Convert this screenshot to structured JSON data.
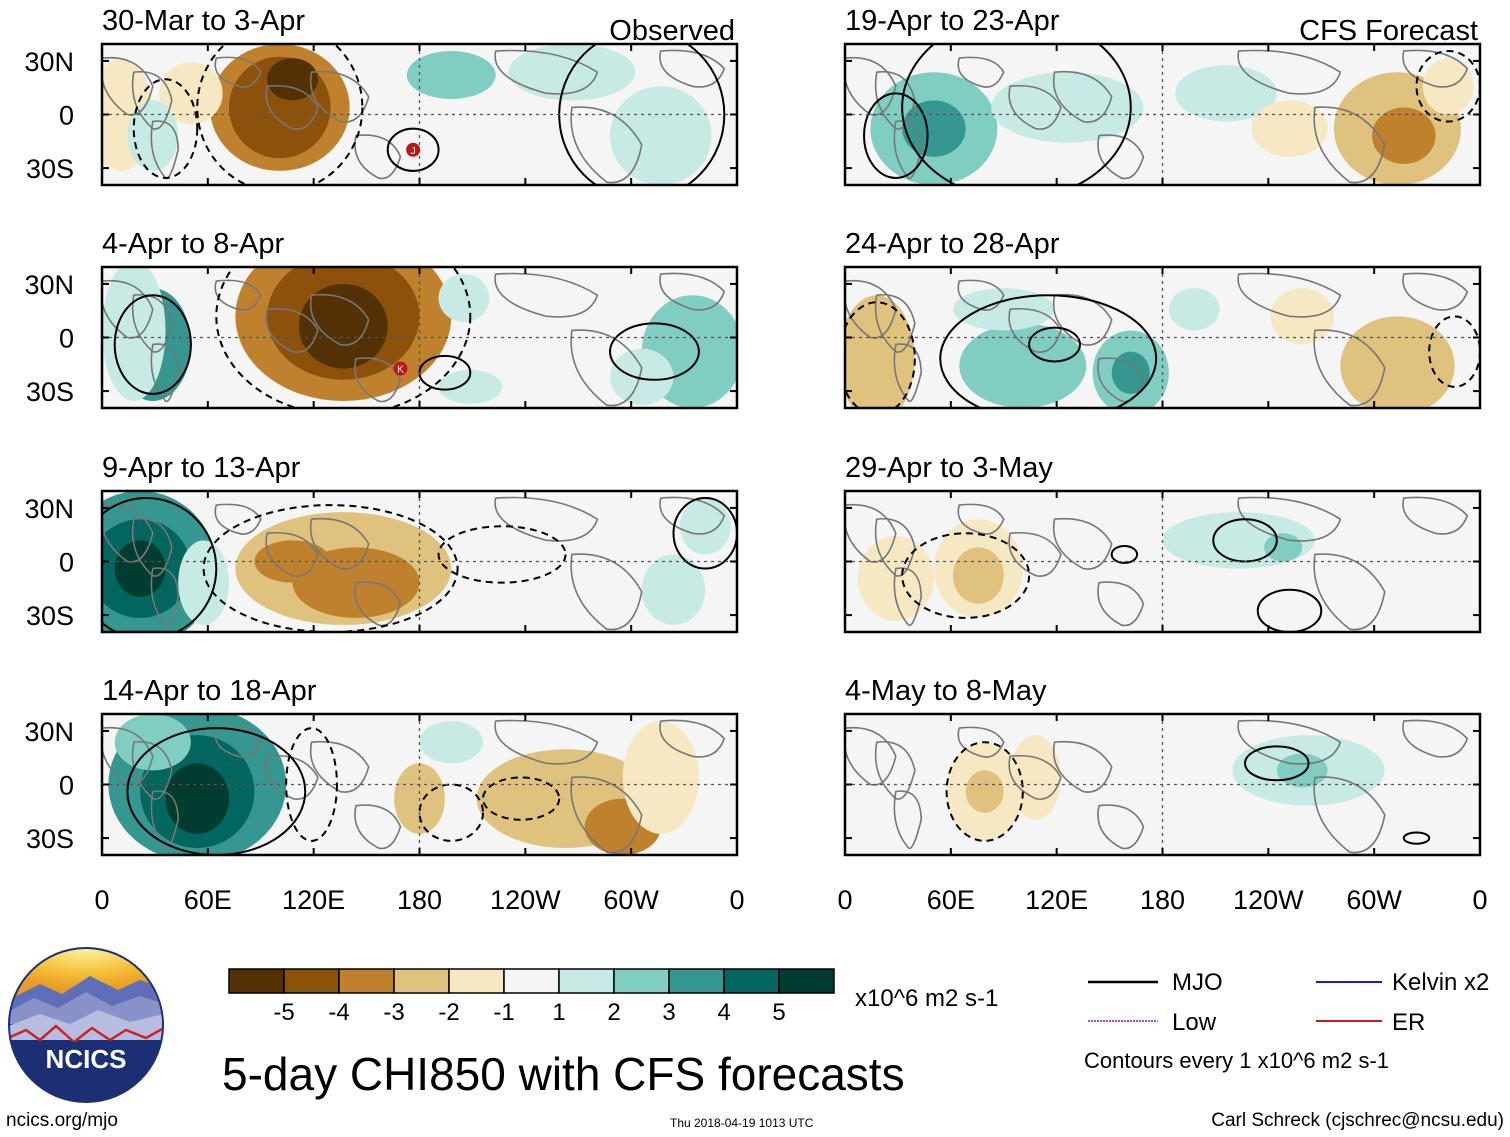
{
  "title": "5-day CHI850 with CFS forecasts",
  "chart_data": {
    "type": "heatmap",
    "variable": "CHI850 anomaly",
    "units": "x10^6 m2 s-1",
    "colorbar": {
      "levels": [
        -5,
        -4,
        -3,
        -2,
        -1,
        1,
        2,
        3,
        4,
        5
      ],
      "labels": [
        "-5",
        "-4",
        "-3",
        "-2",
        "-1",
        "1",
        "2",
        "3",
        "4",
        "5"
      ],
      "colors": [
        "#543005",
        "#8c510a",
        "#bf812d",
        "#dfc27d",
        "#f6e8c3",
        "#f5f5f5",
        "#c7eae5",
        "#80cdc1",
        "#35978f",
        "#01665e",
        "#003c30"
      ]
    },
    "x_ticks": [
      "0",
      "60E",
      "120E",
      "180",
      "120W",
      "60W",
      "0"
    ],
    "y_ticks": [
      "30N",
      "0",
      "30S"
    ],
    "columns": [
      {
        "label": "Observed",
        "panels": [
          "30-Mar to 3-Apr",
          "4-Apr to 8-Apr",
          "9-Apr to 13-Apr",
          "14-Apr to 18-Apr"
        ]
      },
      {
        "label": "CFS Forecast",
        "panels": [
          "19-Apr to 23-Apr",
          "24-Apr to 28-Apr",
          "29-Apr to 3-May",
          "4-May to 8-May"
        ]
      }
    ],
    "legend": [
      "MJO",
      "Kelvin x2",
      "Low",
      "ER"
    ],
    "legend_colors": [
      "#000000",
      "#1a1acc",
      "#a64dd9",
      "#cc1a1a"
    ],
    "contour_note": "Contours every 1 x10^6 m2 s-1",
    "storm_markers": [
      "J",
      "K"
    ]
  },
  "logo": {
    "text": "NCICS",
    "url": "ncics.org/mjo"
  },
  "timestamp": "Thu 2018-04-19 1013 UTC",
  "credit": "Carl Schreck (cjschrec@ncsu.edu)"
}
